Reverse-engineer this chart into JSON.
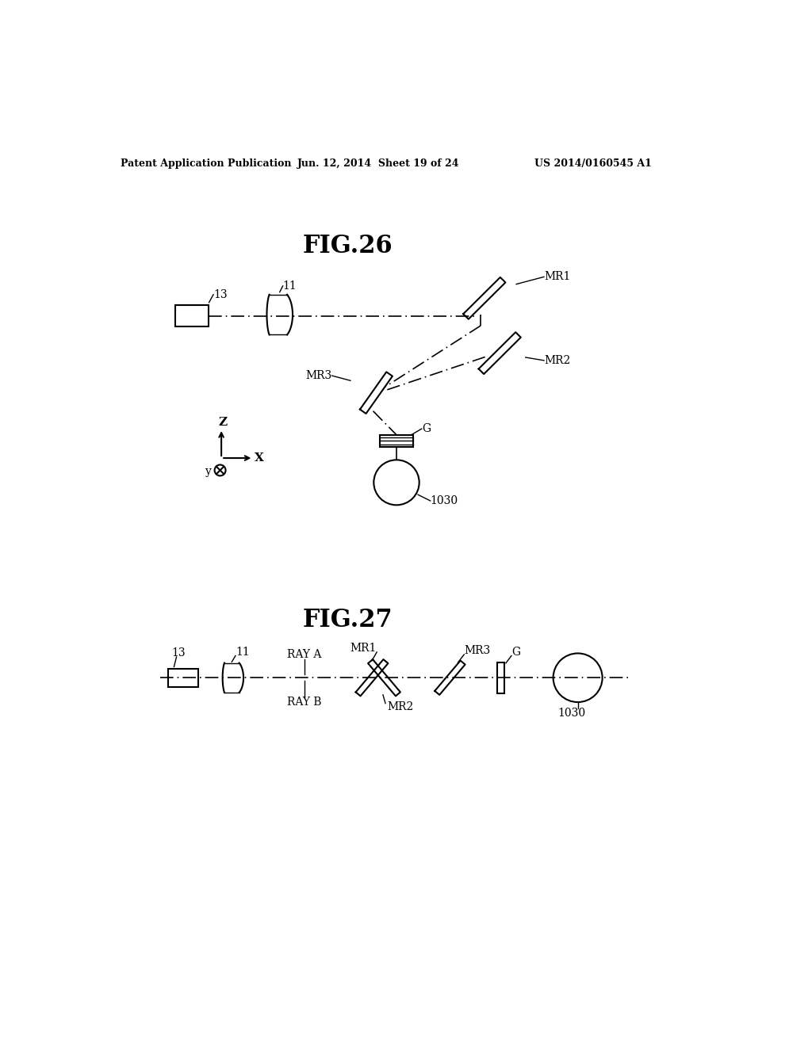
{
  "header_left": "Patent Application Publication",
  "header_mid": "Jun. 12, 2014  Sheet 19 of 24",
  "header_right": "US 2014/0160545 A1",
  "fig26_title": "FIG.26",
  "fig27_title": "FIG.27",
  "bg_color": "#ffffff"
}
